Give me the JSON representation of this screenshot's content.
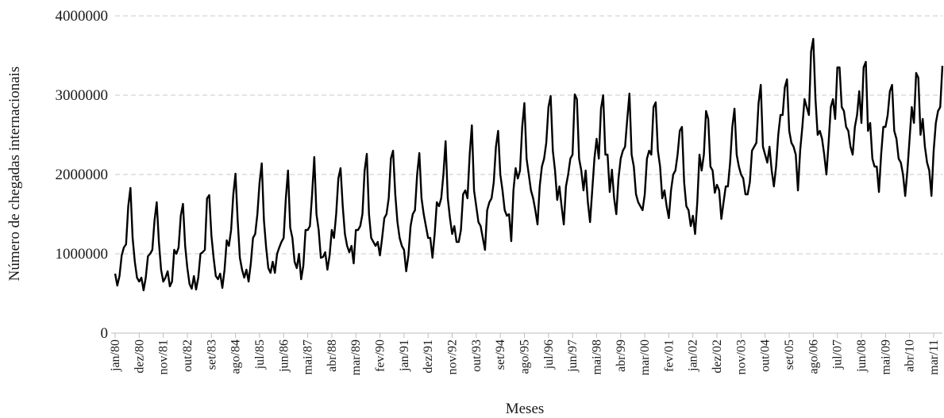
{
  "chart_data": {
    "type": "line",
    "title": "",
    "xlabel": "Meses",
    "ylabel": "Número de chegadas internacionais",
    "ylim": [
      0,
      4000000
    ],
    "yticks": [
      "0",
      "1000000",
      "2000000",
      "3000000",
      "4000000"
    ],
    "grid": true,
    "start_month": "jan/80",
    "xtick_labels": [
      "jan/80",
      "dez/80",
      "nov/81",
      "out/82",
      "set/83",
      "ago/84",
      "jul/85",
      "jun/86",
      "mai/87",
      "abr/88",
      "mar/89",
      "fev/90",
      "jan/91",
      "dez/91",
      "nov/92",
      "out/93",
      "set/94",
      "ago/95",
      "jul/96",
      "jun/97",
      "mai/98",
      "abr/99",
      "mar/00",
      "fev/01",
      "jan/02",
      "dez/02",
      "nov/03",
      "out/04",
      "set/05",
      "ago/06",
      "jul/07",
      "jun/08",
      "mai/09",
      "abr/10",
      "mar/11"
    ],
    "series": [
      {
        "name": "",
        "values": [
          750000,
          600000,
          720000,
          980000,
          1080000,
          1120000,
          1600000,
          1830000,
          1200000,
          900000,
          700000,
          650000,
          700000,
          540000,
          700000,
          970000,
          1000000,
          1050000,
          1420000,
          1650000,
          1150000,
          800000,
          650000,
          700000,
          780000,
          590000,
          650000,
          1050000,
          1000000,
          1080000,
          1480000,
          1630000,
          1100000,
          820000,
          620000,
          560000,
          720000,
          550000,
          700000,
          1000000,
          1020000,
          1050000,
          1700000,
          1740000,
          1230000,
          950000,
          720000,
          680000,
          750000,
          570000,
          800000,
          1170000,
          1100000,
          1300000,
          1750000,
          2010000,
          1420000,
          950000,
          800000,
          700000,
          800000,
          650000,
          880000,
          1200000,
          1250000,
          1500000,
          1900000,
          2140000,
          1420000,
          1080000,
          820000,
          760000,
          900000,
          760000,
          1000000,
          1080000,
          1150000,
          1200000,
          1700000,
          2050000,
          1330000,
          1200000,
          900000,
          820000,
          1000000,
          680000,
          850000,
          1300000,
          1300000,
          1350000,
          1750000,
          2220000,
          1500000,
          1300000,
          950000,
          960000,
          1020000,
          800000,
          980000,
          1300000,
          1200000,
          1500000,
          1950000,
          2080000,
          1600000,
          1250000,
          1100000,
          1020000,
          1100000,
          880000,
          1300000,
          1300000,
          1350000,
          1500000,
          2050000,
          2260000,
          1500000,
          1200000,
          1150000,
          1100000,
          1150000,
          980000,
          1200000,
          1450000,
          1500000,
          1700000,
          2200000,
          2300000,
          1750000,
          1400000,
          1200000,
          1100000,
          1050000,
          780000,
          980000,
          1350000,
          1500000,
          1550000,
          2000000,
          2270000,
          1700000,
          1500000,
          1350000,
          1200000,
          1200000,
          950000,
          1250000,
          1650000,
          1600000,
          1700000,
          2000000,
          2420000,
          1700000,
          1450000,
          1250000,
          1350000,
          1150000,
          1150000,
          1300000,
          1750000,
          1800000,
          1700000,
          2250000,
          2620000,
          1800000,
          1600000,
          1400000,
          1350000,
          1200000,
          1050000,
          1550000,
          1650000,
          1700000,
          1900000,
          2350000,
          2550000,
          2000000,
          1800000,
          1550000,
          1480000,
          1500000,
          1160000,
          1800000,
          2080000,
          1950000,
          2050000,
          2600000,
          2900000,
          2200000,
          2000000,
          1800000,
          1700000,
          1550000,
          1370000,
          1850000,
          2100000,
          2200000,
          2400000,
          2850000,
          2990000,
          2300000,
          2050000,
          1680000,
          1850000,
          1600000,
          1370000,
          1850000,
          2000000,
          2200000,
          2250000,
          3010000,
          2950000,
          2200000,
          2050000,
          1800000,
          2050000,
          1650000,
          1400000,
          1800000,
          2200000,
          2450000,
          2200000,
          2830000,
          3000000,
          2250000,
          2250000,
          1780000,
          2060000,
          1700000,
          1500000,
          1950000,
          2200000,
          2300000,
          2350000,
          2700000,
          3020000,
          2250000,
          2100000,
          1750000,
          1650000,
          1600000,
          1550000,
          1750000,
          2200000,
          2300000,
          2250000,
          2850000,
          2910000,
          2300000,
          2100000,
          1700000,
          1800000,
          1600000,
          1450000,
          1800000,
          2000000,
          2050000,
          2250000,
          2550000,
          2600000,
          1900000,
          1600000,
          1550000,
          1350000,
          1480000,
          1250000,
          1650000,
          2250000,
          2050000,
          2250000,
          2800000,
          2700000,
          2100000,
          2050000,
          1770000,
          1870000,
          1800000,
          1440000,
          1650000,
          1850000,
          1850000,
          2150000,
          2600000,
          2830000,
          2250000,
          2100000,
          2000000,
          1950000,
          1750000,
          1750000,
          1900000,
          2300000,
          2350000,
          2400000,
          2900000,
          3130000,
          2350000,
          2250000,
          2150000,
          2350000,
          2050000,
          1850000,
          2100000,
          2500000,
          2750000,
          2750000,
          3100000,
          3200000,
          2550000,
          2400000,
          2350000,
          2250000,
          1800000,
          2300000,
          2600000,
          2950000,
          2850000,
          2750000,
          3550000,
          3710000,
          2950000,
          2500000,
          2550000,
          2450000,
          2250000,
          2000000,
          2400000,
          2850000,
          2950000,
          2700000,
          3350000,
          3350000,
          2850000,
          2800000,
          2600000,
          2550000,
          2350000,
          2250000,
          2600000,
          2750000,
          3050000,
          2650000,
          3350000,
          3420000,
          2550000,
          2650000,
          2200000,
          2100000,
          2100000,
          1780000,
          2250000,
          2600000,
          2600000,
          2750000,
          3050000,
          3130000,
          2550000,
          2450000,
          2200000,
          2150000,
          2000000,
          1730000,
          2050000,
          2450000,
          2850000,
          2650000,
          3280000,
          3220000,
          2500000,
          2700000,
          2350000,
          2150000,
          2050000,
          1730000,
          2300000,
          2650000,
          2800000,
          2850000,
          3370000
        ]
      }
    ]
  }
}
